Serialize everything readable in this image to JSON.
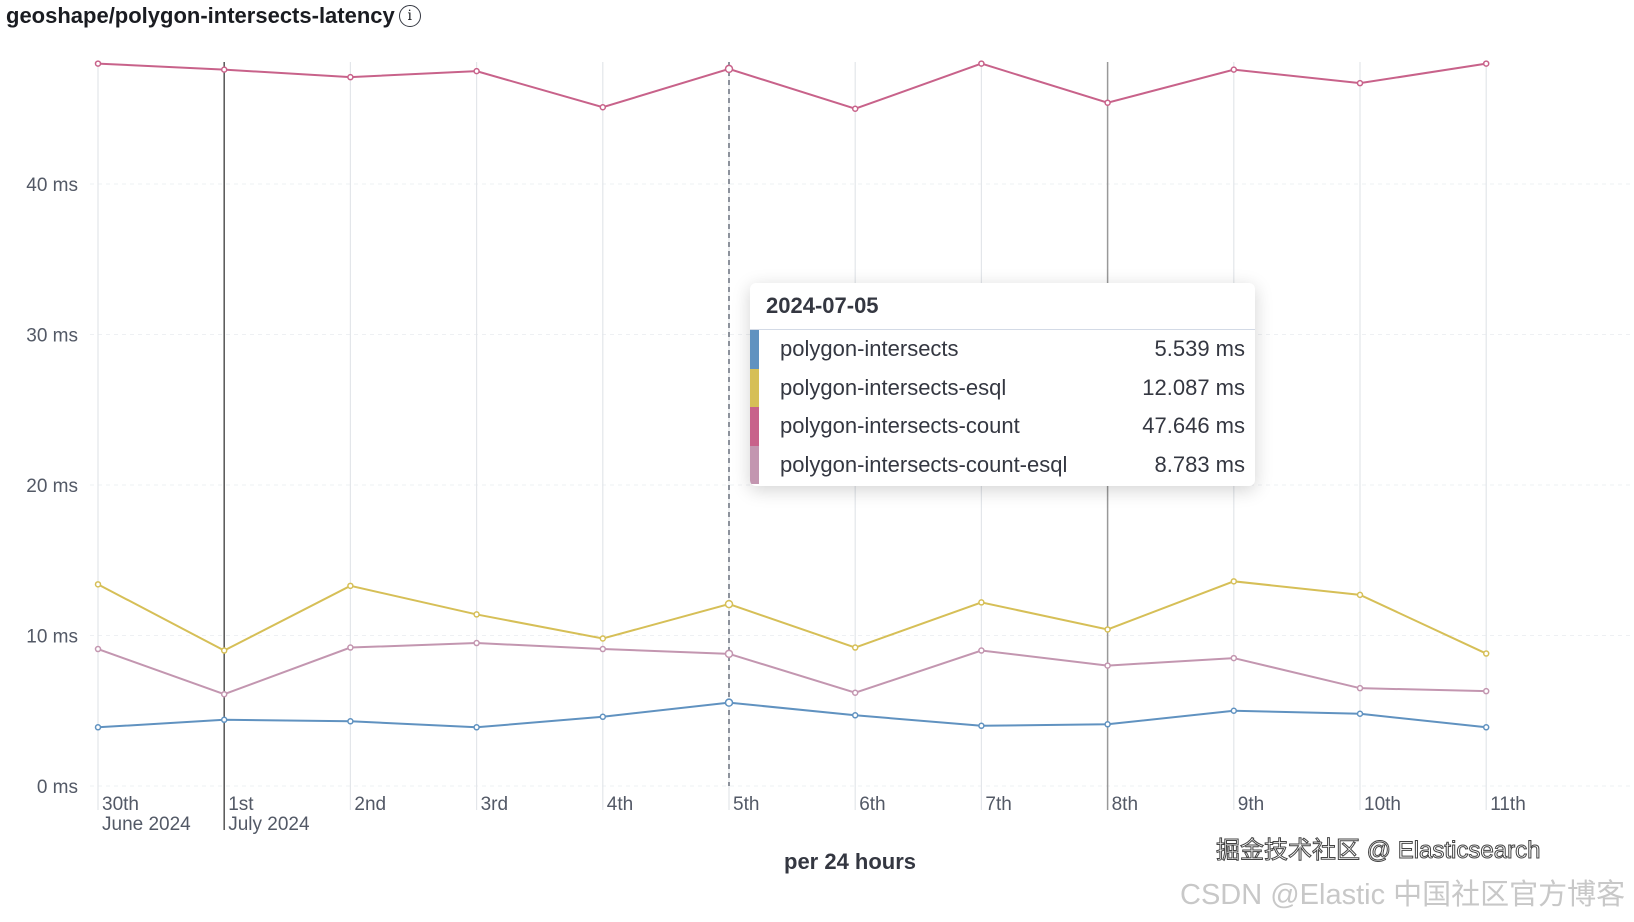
{
  "title": "geoshape/polygon-intersects-latency",
  "info_icon": "info-icon",
  "chart_data": {
    "type": "line",
    "title": "geoshape/polygon-intersects-latency",
    "xlabel": "per 24 hours",
    "ylabel": "",
    "ylim": [
      0,
      48
    ],
    "yticks": [
      0,
      10,
      20,
      30,
      40
    ],
    "ytick_labels": [
      "0 ms",
      "10 ms",
      "20 ms",
      "30 ms",
      "40 ms"
    ],
    "x": [
      "2024-06-30",
      "2024-07-01",
      "2024-07-02",
      "2024-07-03",
      "2024-07-04",
      "2024-07-05",
      "2024-07-06",
      "2024-07-07",
      "2024-07-08",
      "2024-07-09",
      "2024-07-10",
      "2024-07-11"
    ],
    "xtick_labels": [
      "30th",
      "1st",
      "2nd",
      "3rd",
      "4th",
      "5th",
      "6th",
      "7th",
      "8th",
      "9th",
      "10th",
      "11th"
    ],
    "xtick_sublabels": [
      "June 2024",
      "July 2024"
    ],
    "grid": true,
    "series": [
      {
        "name": "polygon-intersects",
        "color": "#6092c0",
        "values": [
          3.9,
          4.4,
          4.3,
          3.9,
          4.6,
          5.539,
          4.7,
          4.0,
          4.1,
          5.0,
          4.8,
          3.9
        ]
      },
      {
        "name": "polygon-intersects-esql",
        "color": "#d6bf57",
        "values": [
          13.4,
          9.0,
          13.3,
          11.4,
          9.8,
          12.087,
          9.2,
          12.2,
          10.4,
          13.6,
          12.7,
          8.8
        ]
      },
      {
        "name": "polygon-intersects-count",
        "color": "#c8628a",
        "values": [
          48.0,
          47.6,
          47.1,
          47.5,
          45.1,
          47.646,
          45.0,
          48.0,
          45.4,
          47.6,
          46.7,
          48.0
        ]
      },
      {
        "name": "polygon-intersects-count-esql",
        "color": "#c396b0",
        "values": [
          9.1,
          6.1,
          9.2,
          9.5,
          9.1,
          8.783,
          6.2,
          9.0,
          8.0,
          8.5,
          6.5,
          6.3
        ]
      }
    ],
    "tooltip": {
      "date": "2024-07-05",
      "rows": [
        {
          "label": "polygon-intersects",
          "value": "5.539 ms"
        },
        {
          "label": "polygon-intersects-esql",
          "value": "12.087 ms"
        },
        {
          "label": "polygon-intersects-count",
          "value": "47.646 ms"
        },
        {
          "label": "polygon-intersects-count-esql",
          "value": "8.783 ms"
        }
      ]
    }
  },
  "watermark": {
    "back": "CSDN @Elastic 中国社区官方博客",
    "front": "掘金技术社区 @ Elasticsearch"
  }
}
